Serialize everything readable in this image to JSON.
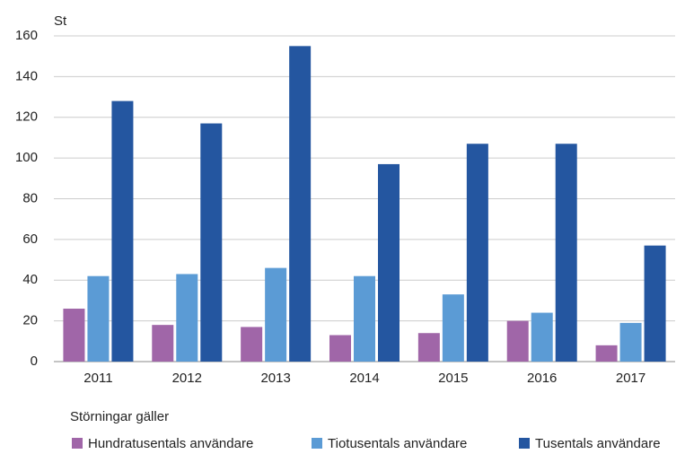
{
  "chart_data": {
    "type": "bar",
    "y_label": "St",
    "legend_title": "Störningar gäller",
    "categories": [
      "2011",
      "2012",
      "2013",
      "2014",
      "2015",
      "2016",
      "2017"
    ],
    "series": [
      {
        "name": "Hundratusentals användare",
        "color": "#a066a8",
        "values": [
          26,
          18,
          17,
          13,
          14,
          20,
          8
        ]
      },
      {
        "name": "Tiotusentals användare",
        "color": "#5b9bd5",
        "values": [
          42,
          43,
          46,
          42,
          33,
          24,
          19
        ]
      },
      {
        "name": "Tusentals användare",
        "color": "#2456a0",
        "values": [
          128,
          117,
          155,
          97,
          107,
          107,
          57
        ]
      }
    ],
    "ylim": [
      0,
      160
    ],
    "yticks": [
      0,
      20,
      40,
      60,
      80,
      100,
      120,
      140,
      160
    ],
    "grid": true,
    "legend": "bottom"
  }
}
